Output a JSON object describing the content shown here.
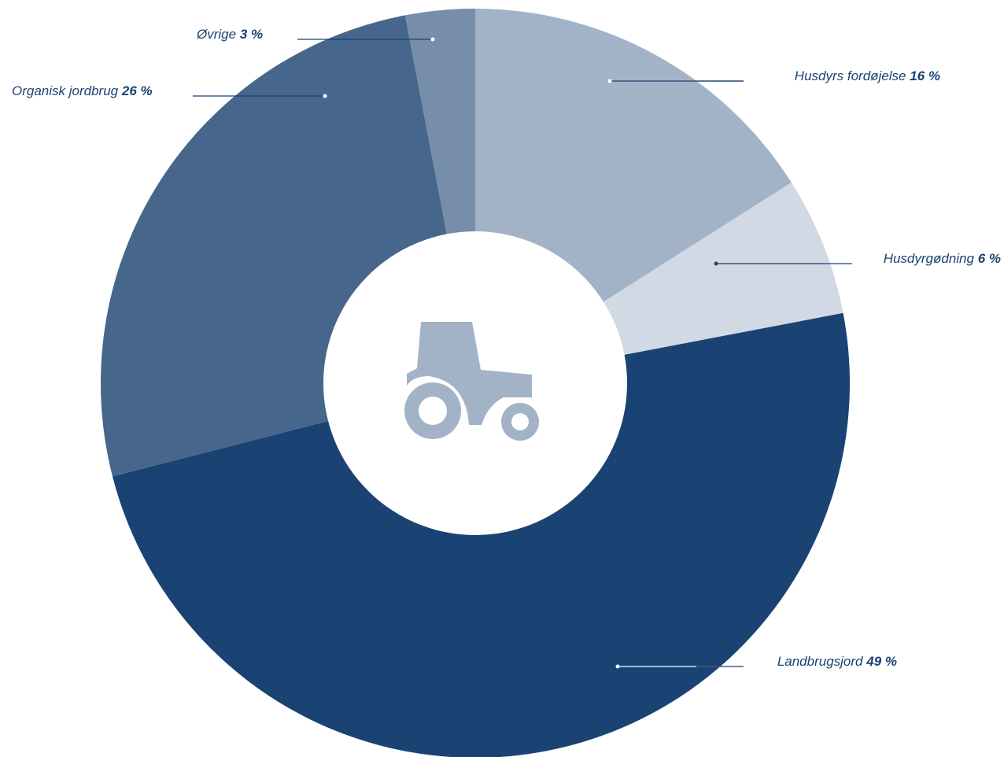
{
  "chart_data": {
    "type": "donut",
    "categories": [
      "Husdyrs fordøjelse",
      "Husdyrgødning",
      "Landbrugsjord",
      "Organisk jordbrug",
      "Øvrige"
    ],
    "values": [
      16,
      6,
      49,
      26,
      3
    ],
    "value_labels": [
      "16 %",
      "6 %",
      "49 %",
      "26 %",
      "3 %"
    ],
    "colors": [
      "#a3b3c7",
      "#d1dae4",
      "#1a4273",
      "#46678b",
      "#768ea9"
    ]
  }
}
